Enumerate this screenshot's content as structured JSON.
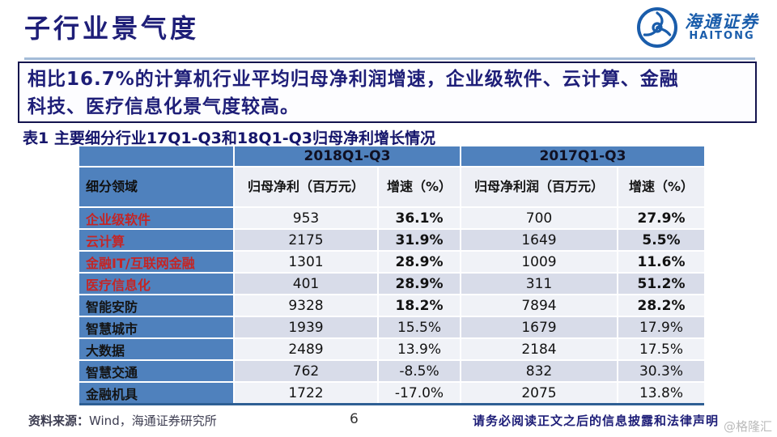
{
  "page": {
    "title": "子行业景气度",
    "logo": {
      "name_cn": "海通证券",
      "name_en": "HAITONG",
      "color": "#1a5dab"
    },
    "highlight_line1": "相比16.7%的计算机行业平均归母净利润增速，企业级软件、云计算、金融",
    "highlight_line2": "科技、医疗信息化景气度较高。",
    "table_caption": "表1 主要细分行业17Q1-Q3和18Q1-Q3归母净利增长情况",
    "footer": {
      "source_label": "资料来源：",
      "source_text": "Wind，海通证券研究所",
      "page_number": "6",
      "disclaimer": "请务必阅读正文之后的信息披露和法律声明",
      "watermark": "@格隆汇"
    },
    "colors": {
      "navy_text": "#1e1e78",
      "header_blue": "#4f81bd",
      "highlight_red": "#c42525",
      "stripe_light": "#f0f2f7",
      "stripe_dark": "#d8dce9"
    }
  },
  "chart_data": {
    "type": "table",
    "title": "表1 主要细分行业17Q1-Q3和18Q1-Q3归母净利增长情况",
    "column_groups": [
      {
        "label": "",
        "span": 1
      },
      {
        "label": "2018Q1-Q3",
        "span": 2
      },
      {
        "label": "2017Q1-Q3",
        "span": 2
      }
    ],
    "columns": [
      "细分领域",
      "归母净利（百万元）",
      "增速（%）",
      "归母净利润（百万元）",
      "增速（%）"
    ],
    "rows": [
      {
        "label": "企业级软件",
        "np_2018": "953",
        "growth_2018": "36.1%",
        "np_2017": "700",
        "growth_2017": "27.9%",
        "label_red": true,
        "growth_bold": true
      },
      {
        "label": "云计算",
        "np_2018": "2175",
        "growth_2018": "31.9%",
        "np_2017": "1649",
        "growth_2017": "5.5%",
        "label_red": true,
        "growth_bold": true
      },
      {
        "label": "金融IT/互联网金融",
        "np_2018": "1301",
        "growth_2018": "28.9%",
        "np_2017": "1009",
        "growth_2017": "11.6%",
        "label_red": true,
        "growth_bold": true
      },
      {
        "label": "医疗信息化",
        "np_2018": "401",
        "growth_2018": "28.9%",
        "np_2017": "311",
        "growth_2017": "51.2%",
        "label_red": true,
        "growth_bold": true
      },
      {
        "label": "智能安防",
        "np_2018": "9328",
        "growth_2018": "18.2%",
        "np_2017": "7894",
        "growth_2017": "28.2%",
        "label_red": false,
        "growth_bold": true
      },
      {
        "label": "智慧城市",
        "np_2018": "1939",
        "growth_2018": "15.5%",
        "np_2017": "1679",
        "growth_2017": "17.9%",
        "label_red": false,
        "growth_bold": false
      },
      {
        "label": "大数据",
        "np_2018": "2489",
        "growth_2018": "13.9%",
        "np_2017": "2184",
        "growth_2017": "17.5%",
        "label_red": false,
        "growth_bold": false
      },
      {
        "label": "智慧交通",
        "np_2018": "762",
        "growth_2018": "-8.5%",
        "np_2017": "832",
        "growth_2017": "30.3%",
        "label_red": false,
        "growth_bold": false
      },
      {
        "label": "金融机具",
        "np_2018": "1722",
        "growth_2018": "-17.0%",
        "np_2017": "2075",
        "growth_2017": "13.8%",
        "label_red": false,
        "growth_bold": false
      }
    ]
  }
}
